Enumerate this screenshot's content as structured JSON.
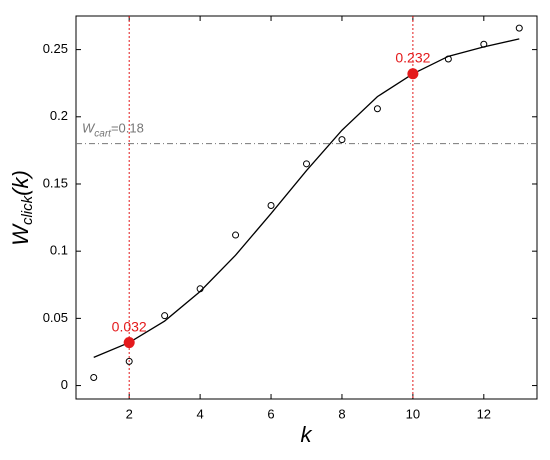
{
  "chart_data": {
    "type": "scatter",
    "xlabel": "k",
    "ylabel_main": "W",
    "ylabel_sub": "click",
    "ylabel_tail": "(k)",
    "xlim": [
      0.5,
      13.5
    ],
    "ylim": [
      -0.01,
      0.275
    ],
    "xticks": [
      2,
      4,
      6,
      8,
      10,
      12
    ],
    "yticks": [
      0,
      0.05,
      0.1,
      0.15,
      0.2,
      0.25
    ],
    "x": [
      1,
      2,
      3,
      4,
      5,
      6,
      7,
      8,
      9,
      10,
      11,
      12,
      13
    ],
    "values": [
      0.006,
      0.018,
      0.052,
      0.072,
      0.112,
      0.134,
      0.165,
      0.183,
      0.206,
      0.232,
      0.243,
      0.254,
      0.266
    ],
    "color": "#000000",
    "fit": {
      "x": [
        1,
        2,
        3,
        4,
        5,
        6,
        7,
        8,
        9,
        10,
        11,
        12,
        13
      ],
      "values": [
        0.021,
        0.032,
        0.048,
        0.07,
        0.097,
        0.128,
        0.16,
        0.19,
        0.215,
        0.232,
        0.245,
        0.252,
        0.258
      ],
      "color": "#000000"
    },
    "reference_line": {
      "y": 0.18,
      "name": "W",
      "name_sub": "cart",
      "value_label": "=0.18",
      "color": "#777777"
    },
    "highlights": {
      "x": [
        2,
        10
      ],
      "values": [
        0.032,
        0.232
      ],
      "color": "#e41a1c"
    }
  }
}
